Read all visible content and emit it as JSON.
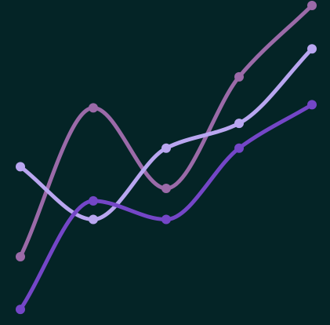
{
  "chart_data": {
    "type": "line",
    "title": "",
    "xlabel": "",
    "ylabel": "",
    "x": [
      1,
      2,
      3,
      4,
      5
    ],
    "ylim": [
      0,
      100
    ],
    "grid": false,
    "legend": "none",
    "background": "#042426",
    "smooth": true,
    "series": [
      {
        "color": "#9b6aa8",
        "values": [
          19,
          67,
          41,
          77,
          100
        ]
      },
      {
        "color": "#b9a6f0",
        "values": [
          48,
          31,
          54,
          62,
          86
        ]
      },
      {
        "color": "#7446c7",
        "values": [
          2,
          37,
          31,
          54,
          68
        ]
      }
    ]
  }
}
